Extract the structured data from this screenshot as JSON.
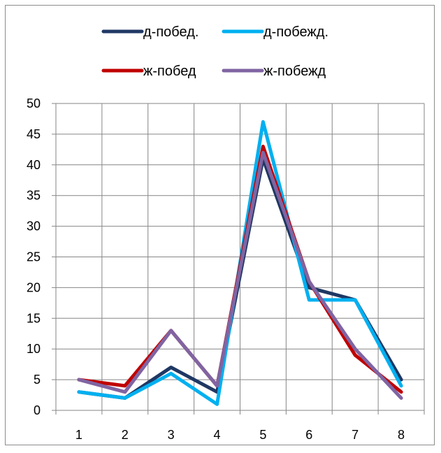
{
  "chart_data": {
    "type": "line",
    "title": "",
    "xlabel": "",
    "ylabel": "",
    "categories": [
      "1",
      "2",
      "3",
      "4",
      "5",
      "6",
      "7",
      "8"
    ],
    "ylim": [
      0,
      50
    ],
    "yticks": [
      "0",
      "5",
      "10",
      "15",
      "20",
      "25",
      "30",
      "35",
      "40",
      "45",
      "50"
    ],
    "grid": true,
    "legend_position": "top",
    "series": [
      {
        "name": "д-побед.",
        "color": "#1f3864",
        "values": [
          3,
          2,
          7,
          3,
          41,
          20,
          18,
          5
        ]
      },
      {
        "name": "д-побежд.",
        "color": "#00b0f0",
        "values": [
          3,
          2,
          6,
          1,
          47,
          18,
          18,
          4
        ]
      },
      {
        "name": "ж-побед",
        "color": "#c00000",
        "values": [
          5,
          4,
          13,
          4,
          43,
          21,
          9,
          3
        ]
      },
      {
        "name": "ж-побежд",
        "color": "#8064a2",
        "values": [
          5,
          3,
          13,
          4,
          42,
          21,
          10,
          2
        ]
      }
    ]
  }
}
